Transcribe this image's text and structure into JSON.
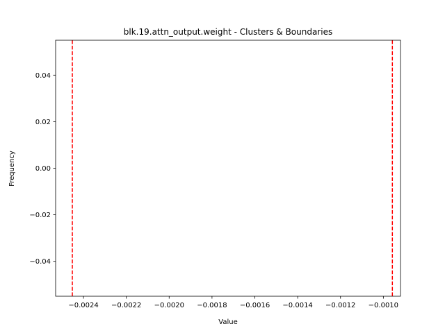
{
  "chart_data": {
    "type": "line",
    "title": "blk.19.attn_output.weight - Clusters & Boundaries",
    "xlabel": "Value",
    "ylabel": "Frequency",
    "xlim": [
      -0.00253,
      -0.00092
    ],
    "ylim": [
      -0.055,
      0.055
    ],
    "x_ticks": [
      {
        "value": -0.0024,
        "label": "−0.0024"
      },
      {
        "value": -0.0022,
        "label": "−0.0022"
      },
      {
        "value": -0.002,
        "label": "−0.0020"
      },
      {
        "value": -0.0018,
        "label": "−0.0018"
      },
      {
        "value": -0.0016,
        "label": "−0.0016"
      },
      {
        "value": -0.0014,
        "label": "−0.0014"
      },
      {
        "value": -0.0012,
        "label": "−0.0012"
      },
      {
        "value": -0.001,
        "label": "−0.0010"
      }
    ],
    "y_ticks": [
      {
        "value": 0.04,
        "label": "0.04"
      },
      {
        "value": 0.02,
        "label": "0.02"
      },
      {
        "value": 0.0,
        "label": "0.00"
      },
      {
        "value": -0.02,
        "label": "−0.02"
      },
      {
        "value": -0.04,
        "label": "−0.04"
      }
    ],
    "boundaries": [
      -0.002452,
      -0.000958
    ],
    "boundary_color": "#ff0000",
    "grid": false
  }
}
